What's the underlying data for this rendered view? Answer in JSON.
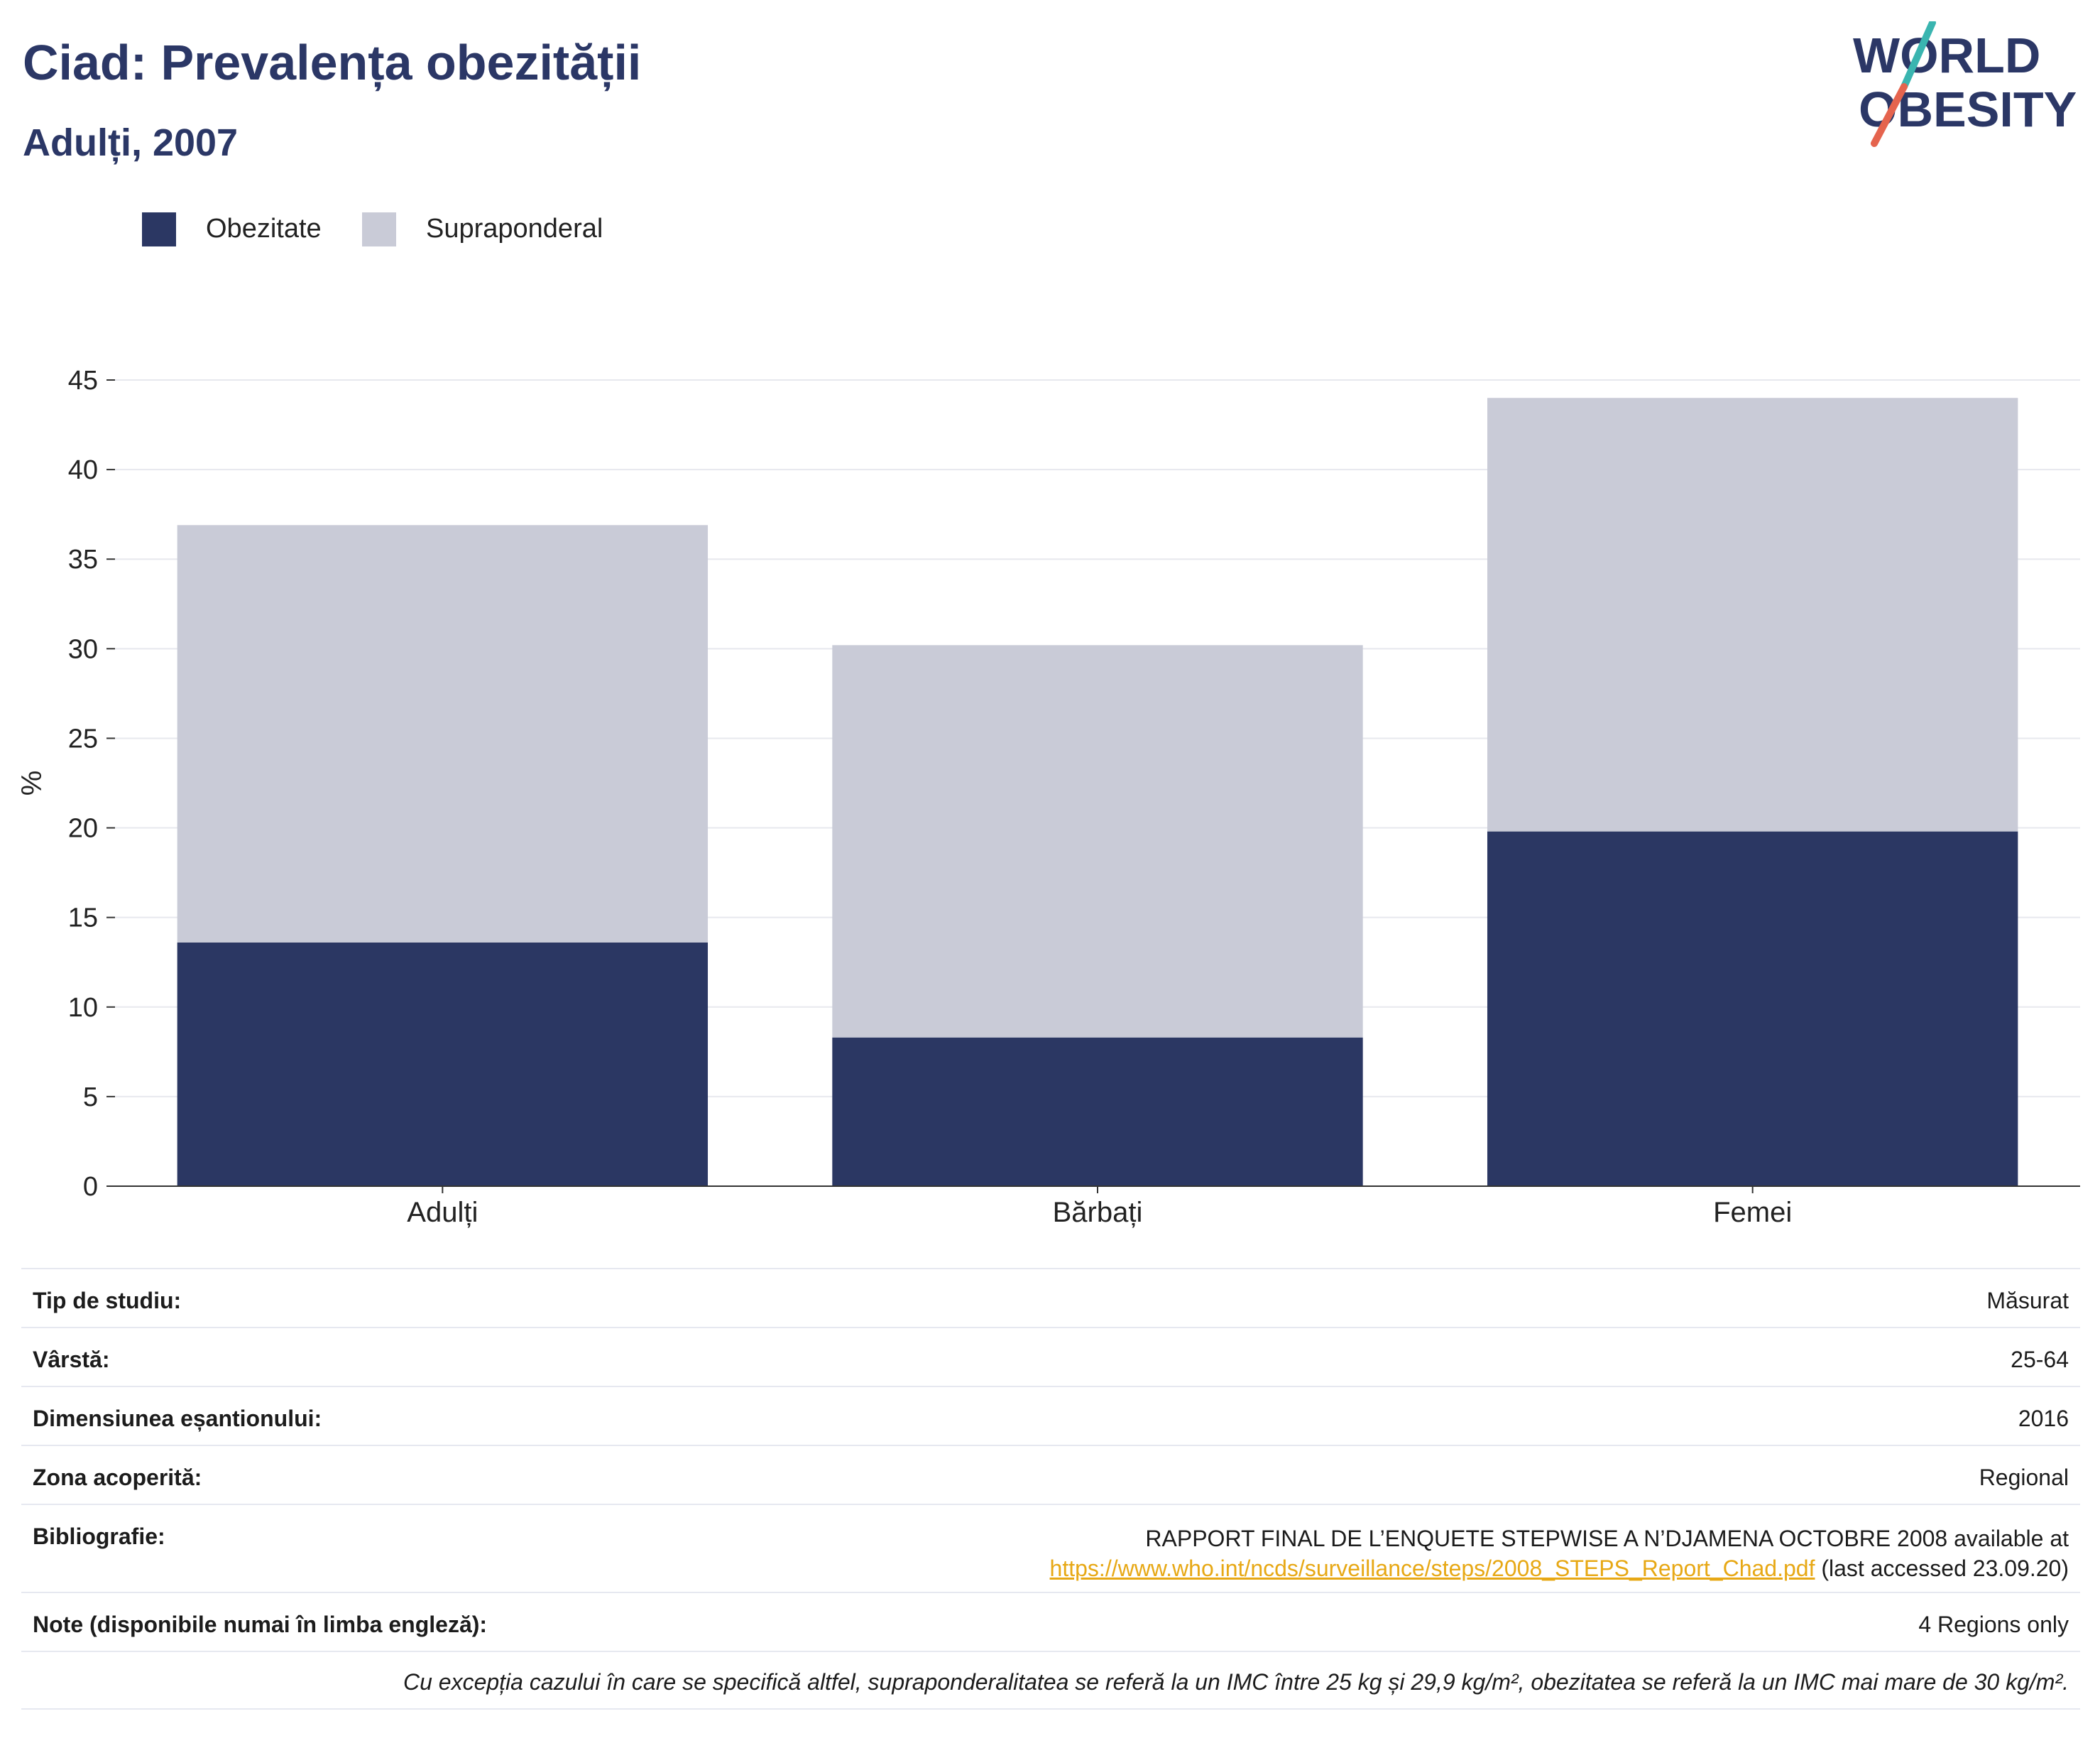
{
  "header": {
    "title": "Ciad: Prevalența obezității",
    "subtitle": "Adulți, 2007"
  },
  "logo": {
    "line1": "WORLD",
    "line2": "OBESITY",
    "colors": {
      "text": "#2b3766",
      "slash_top": "#3ab5b0",
      "slash_bottom": "#e5644e"
    }
  },
  "legend": {
    "items": [
      {
        "label": "Obezitate",
        "color": "#2b3763"
      },
      {
        "label": "Supraponderal",
        "color": "#c9cbd7"
      }
    ]
  },
  "chart_data": {
    "type": "bar",
    "stacked": true,
    "categories": [
      "Adulți",
      "Bărbați",
      "Femei"
    ],
    "series": [
      {
        "name": "Obezitate",
        "values": [
          13.6,
          8.3,
          19.8
        ],
        "color": "#2b3763"
      },
      {
        "name": "Supraponderal",
        "values": [
          23.3,
          21.9,
          24.2
        ],
        "color": "#c9cbd7"
      }
    ],
    "ylabel": "%",
    "ylim": [
      0,
      45
    ],
    "yticks": [
      0,
      5,
      10,
      15,
      20,
      25,
      30,
      35,
      40,
      45
    ],
    "grid": true,
    "legend_position": "top-left"
  },
  "info": {
    "rows": [
      {
        "label": "Tip de studiu:",
        "value": "Măsurat"
      },
      {
        "label": "Vârstă:",
        "value": "25-64"
      },
      {
        "label": "Dimensiunea eșantionului:",
        "value": "2016"
      },
      {
        "label": "Zona acoperită:",
        "value": "Regional"
      }
    ],
    "bibliography": {
      "label": "Bibliografie:",
      "line1": "RAPPORT FINAL DE L’ENQUETE STEPWISE A N’DJAMENA OCTOBRE 2008 available at",
      "link": "https://www.who.int/ncds/surveillance/steps/2008_STEPS_Report_Chad.pdf",
      "suffix": " (last accessed 23.09.20)"
    },
    "notes": {
      "label": "Note (disponibile numai în limba engleză):",
      "value": "4 Regions only"
    },
    "footnote": "Cu excepția cazului în care se specifică altfel, supraponderalitatea se referă la un IMC între 25 kg și 29,9 kg/m², obezitatea se referă la un IMC mai mare de 30 kg/m²."
  }
}
